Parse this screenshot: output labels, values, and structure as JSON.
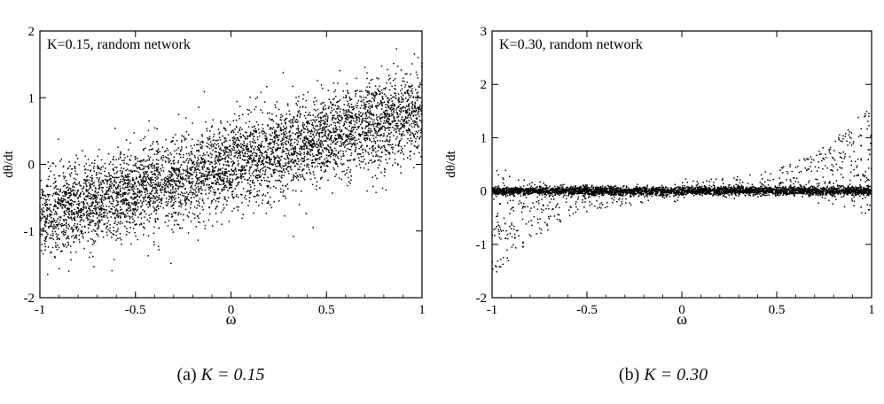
{
  "chart_data": [
    {
      "type": "scatter",
      "caption_prefix": "(a)",
      "caption_math": "K = 0.15",
      "annotation": "K=0.15, random network",
      "xlabel": "ω",
      "ylabel": "dθ/dt",
      "xlim": [
        -1,
        1
      ],
      "ylim": [
        -2,
        2
      ],
      "xticks": [
        "-1",
        "-0.5",
        "0",
        "0.5",
        "1"
      ],
      "yticks": [
        "-2",
        "-1",
        "0",
        "1",
        "2"
      ],
      "grid": false,
      "legend": "none",
      "series": [
        {
          "relation": "dθ/dt ≈ 0.8·ω",
          "spread": 0.32,
          "x_range": [
            -1,
            1
          ]
        }
      ]
    },
    {
      "type": "scatter",
      "caption_prefix": "(b)",
      "caption_math": "K = 0.30",
      "annotation": "K=0.30, random network",
      "xlabel": "ω",
      "ylabel": "dθ/dt",
      "xlim": [
        -1,
        1
      ],
      "ylim": [
        -2,
        3
      ],
      "xticks": [
        "-1",
        "-0.5",
        "0",
        "0.5",
        "1"
      ],
      "yticks": [
        "-2",
        "-1",
        "0",
        "1",
        "2",
        "3"
      ],
      "grid": false,
      "legend": "none",
      "series": [
        {
          "relation": "locked band at dθ/dt ≈ 0",
          "spread": 0.04,
          "x_range": [
            -1,
            1
          ]
        },
        {
          "relation": "drifting tails, |dθ/dt| up to ~2 near ω = ±1",
          "x_range": [
            -1,
            1
          ]
        }
      ]
    }
  ]
}
